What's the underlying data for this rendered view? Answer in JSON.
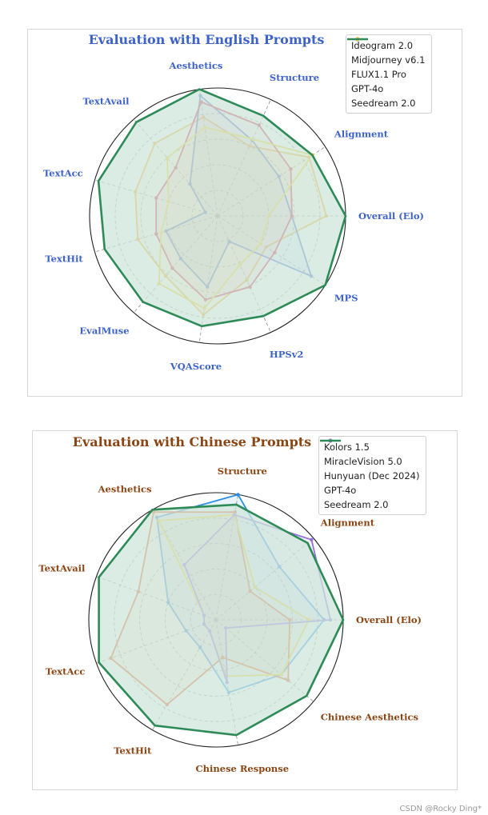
{
  "chart_data": [
    {
      "type": "radar",
      "title": "Evaluation with English Prompts",
      "axes": [
        "Overall (Elo)",
        "Alignment",
        "Structure",
        "Aesthetics",
        "TextAvail",
        "TextAcc",
        "TextHit",
        "EvalMuse",
        "VQAScore",
        "HPSv2",
        "MPS"
      ],
      "range": [
        0,
        1
      ],
      "grid": true,
      "legend_position": "top-right",
      "series": [
        {
          "name": "Ideogram 2.0",
          "color": "#f5a623",
          "marker": true,
          "values": [
            0.85,
            0.85,
            0.6,
            0.78,
            0.75,
            0.67,
            0.65,
            0.62,
            0.78,
            0.55,
            0.45
          ]
        },
        {
          "name": "Midjourney v6.1",
          "color": "#4169c9",
          "marker": true,
          "values": [
            0.58,
            0.57,
            0.65,
            0.95,
            0.33,
            0.1,
            0.42,
            0.44,
            0.56,
            0.22,
            0.87
          ]
        },
        {
          "name": "FLUX1.1 Pro",
          "color": "#d8204a",
          "marker": true,
          "values": [
            0.58,
            0.68,
            0.78,
            0.9,
            0.5,
            0.5,
            0.5,
            0.54,
            0.66,
            0.61,
            0.53
          ]
        },
        {
          "name": "GPT-4o",
          "color": "#f0d020",
          "marker": true,
          "values": [
            0.4,
            0.88,
            0.66,
            0.7,
            0.6,
            0.4,
            0.46,
            0.7,
            0.73,
            0.42,
            0.4
          ]
        },
        {
          "name": "Seedream 2.0",
          "color": "#2e8b57",
          "marker": false,
          "values": [
            1.0,
            0.88,
            0.86,
            1.0,
            0.97,
            0.97,
            0.92,
            0.89,
            0.87,
            0.86,
            1.0
          ]
        }
      ]
    },
    {
      "type": "radar",
      "title": "Evaluation with Chinese Prompts",
      "axes": [
        "Overall (Elo)",
        "Alignment",
        "Structure",
        "Aesthetics",
        "TextAvail",
        "TextAcc",
        "TextHit",
        "Chinese Response",
        "Chinese Aesthetics"
      ],
      "range": [
        0,
        1
      ],
      "grid": true,
      "legend_position": "top-right",
      "series": [
        {
          "name": "Kolors 1.5",
          "color": "#2b8ee6",
          "marker": true,
          "values": [
            0.85,
            0.65,
            1.0,
            0.93,
            0.4,
            0.25,
            0.25,
            0.58,
            0.67
          ]
        },
        {
          "name": "MiracleVision 5.0",
          "color": "#e55a1c",
          "marker": true,
          "values": [
            0.58,
            0.35,
            0.86,
            0.98,
            0.65,
            0.88,
            0.77,
            0.3,
            0.74
          ]
        },
        {
          "name": "Hunyuan (Dec 2024)",
          "color": "#f0d020",
          "marker": true,
          "values": [
            0.73,
            0.4,
            0.84,
            0.9,
            0.1,
            0.1,
            0.1,
            0.45,
            0.67
          ]
        },
        {
          "name": "GPT-4o",
          "color": "#9370db",
          "marker": true,
          "values": [
            0.9,
            0.98,
            0.84,
            0.5,
            0.1,
            0.1,
            0.1,
            0.5,
            0.1
          ]
        },
        {
          "name": "Seedream 2.0",
          "color": "#2e8b57",
          "marker": false,
          "values": [
            1.0,
            0.94,
            0.92,
            1.0,
            0.98,
            0.98,
            0.96,
            0.92,
            0.93
          ]
        }
      ]
    }
  ],
  "watermark": "CSDN @Rocky Ding*",
  "colors": {
    "title_en": "#3d63c9",
    "label_en": "#3d63c9",
    "title_zh": "#8b4513",
    "label_zh": "#8b4513",
    "fill": "#cfe6db"
  }
}
